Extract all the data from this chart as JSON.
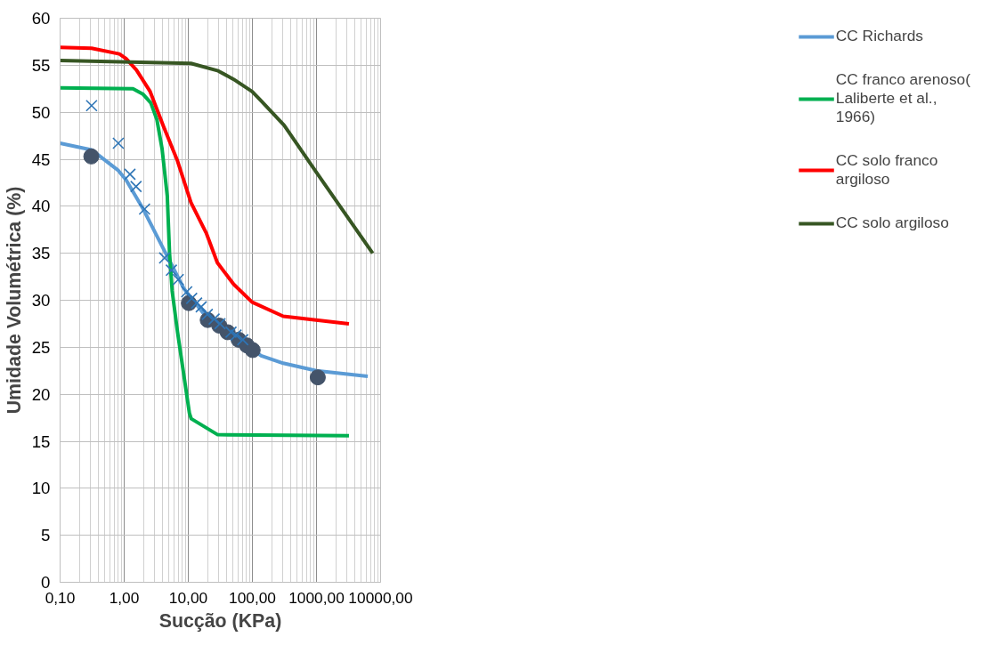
{
  "chart_data": {
    "type": "line",
    "xlabel": "Sucção (KPa)",
    "ylabel": "Umidade Volumétrica (%)",
    "log": "x",
    "grid": true,
    "legend": "right",
    "xlim": [
      0.1,
      10000
    ],
    "ylim": [
      0,
      60
    ],
    "xticks": [
      {
        "value": 0.1,
        "label": "0,10"
      },
      {
        "value": 1,
        "label": "1,00"
      },
      {
        "value": 10,
        "label": "10,00"
      },
      {
        "value": 100,
        "label": "100,00"
      },
      {
        "value": 1000,
        "label": "1000,00"
      },
      {
        "value": 10000,
        "label": "10000,00"
      }
    ],
    "yticks": [
      0,
      5,
      10,
      15,
      20,
      25,
      30,
      35,
      40,
      45,
      50,
      55,
      60
    ],
    "series": [
      {
        "marker": "none",
        "name": "CC Richards",
        "color": "#5b9bd5",
        "x": [
          0.1,
          0.31,
          0.81,
          1.07,
          1.98,
          4.14,
          8.6,
          20.2,
          137,
          303,
          1000,
          6300
        ],
        "values": [
          46.7,
          46.0,
          43.8,
          42.8,
          39.7,
          35.4,
          31.2,
          28.0,
          24.1,
          23.3,
          22.5,
          21.9
        ]
      },
      {
        "marker": "none",
        "name": "CC franco arenoso( Laliberte et al., 1966)",
        "color": "#00b050",
        "x": [
          0.1,
          1.37,
          1.98,
          2.6,
          3.24,
          3.9,
          4.7,
          5.1,
          5.6,
          6.8,
          10.4,
          11.1,
          28.7,
          3210
        ],
        "values": [
          52.6,
          52.5,
          51.9,
          51.0,
          49.2,
          46.1,
          41.1,
          35.0,
          31.0,
          26.6,
          18.0,
          17.4,
          15.7,
          15.6
        ]
      },
      {
        "marker": "none",
        "name": "CC solo franco argiloso",
        "color": "#ff0000",
        "x": [
          0.1,
          0.31,
          0.84,
          1.07,
          1.55,
          2.54,
          4.1,
          6.8,
          11.0,
          19.2,
          28.4,
          51,
          99,
          303,
          3210
        ],
        "values": [
          56.9,
          56.8,
          56.2,
          55.7,
          54.5,
          52.2,
          48.5,
          44.8,
          40.4,
          37.1,
          34.0,
          31.7,
          29.8,
          28.3,
          27.5
        ]
      },
      {
        "marker": "none",
        "name": "CC solo argiloso",
        "color": "#375623",
        "x": [
          0.1,
          11.0,
          29.3,
          51,
          99,
          137,
          313,
          1000,
          7520
        ],
        "values": [
          55.5,
          55.2,
          54.4,
          53.5,
          52.2,
          51.2,
          48.6,
          43.6,
          35.0
        ]
      },
      {
        "type": "scatter",
        "marker": "circle",
        "color": "#44546a",
        "x": [
          0.307,
          10.2,
          20.1,
          30.4,
          41.1,
          61.1,
          82.0,
          101,
          1047
        ],
        "values": [
          45.3,
          29.7,
          27.9,
          27.3,
          26.6,
          25.8,
          25.2,
          24.7,
          21.8
        ]
      },
      {
        "type": "scatter",
        "marker": "cross",
        "color": "#2e75b6",
        "x": [
          0.31,
          0.81,
          1.23,
          1.53,
          2.08,
          4.27,
          5.45,
          6.97,
          9.46,
          11.3,
          13.5,
          15.9,
          19.8,
          25.3,
          31.2,
          46.4,
          55.6,
          70.8
        ],
        "values": [
          50.7,
          46.7,
          43.4,
          42.1,
          39.7,
          34.5,
          33.2,
          32.2,
          30.9,
          30.2,
          29.7,
          29.3,
          28.5,
          28.0,
          27.5,
          26.6,
          26.3,
          25.8
        ]
      }
    ]
  }
}
